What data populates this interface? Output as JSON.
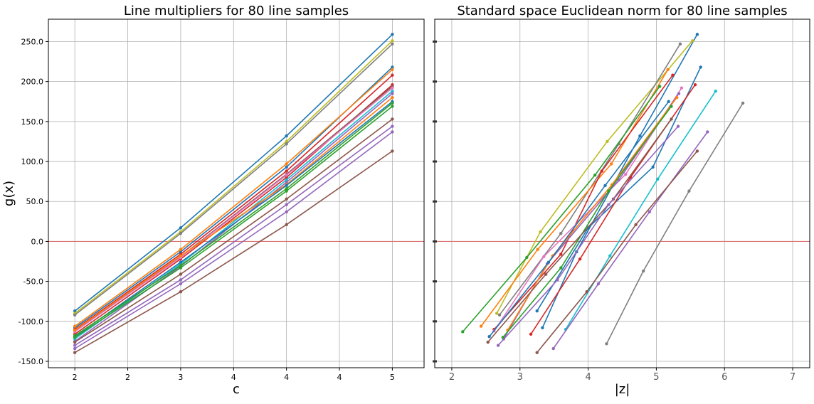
{
  "chart_data": [
    {
      "type": "line",
      "title": "Line multipliers for 80 line samples",
      "xlabel": "c",
      "ylabel": "g(x)",
      "xlim": [
        1.75,
        5.3
      ],
      "ylim": [
        -158,
        278
      ],
      "xticks": [
        2,
        2.5,
        3,
        3.5,
        4,
        4.5,
        5
      ],
      "xticklabels": [
        "2",
        "2",
        "3",
        "4",
        "4",
        "4",
        "5"
      ],
      "yticks": [
        -150,
        -100,
        -50,
        0,
        50,
        100,
        150,
        200,
        250
      ],
      "yticklabels": [
        "-150.0",
        "-100.0",
        "-50.0",
        "0.0",
        "50.0",
        "100.0",
        "150.0",
        "200.0",
        "250.0"
      ],
      "grid": true,
      "reference_line": {
        "y": 0,
        "color": "#e06666"
      },
      "x": [
        2,
        3,
        4,
        5
      ],
      "series": [
        {
          "color": "#1f77b4",
          "values": [
            -87,
            17,
            132,
            259
          ]
        },
        {
          "color": "#bcbd22",
          "values": [
            -90,
            12,
            125,
            251
          ]
        },
        {
          "color": "#7f7f7f",
          "values": [
            -92,
            10,
            122,
            247
          ]
        },
        {
          "color": "#1f77b4",
          "values": [
            -108,
            -13,
            93,
            218
          ]
        },
        {
          "color": "#ff7f0e",
          "values": [
            -106,
            -10,
            97,
            215
          ]
        },
        {
          "color": "#d62728",
          "values": [
            -110,
            -16,
            88,
            208
          ]
        },
        {
          "color": "#d62728",
          "values": [
            -116,
            -22,
            80,
            196
          ]
        },
        {
          "color": "#8c564b",
          "values": [
            -112,
            -19,
            84,
            194
          ]
        },
        {
          "color": "#e377c2",
          "values": [
            -113,
            -20,
            83,
            192
          ]
        },
        {
          "color": "#17becf",
          "values": [
            -122,
            -28,
            77,
            188
          ]
        },
        {
          "color": "#9467bd",
          "values": [
            -125,
            -31,
            74,
            185
          ]
        },
        {
          "color": "#ff7f0e",
          "values": [
            -111,
            -18,
            71,
            180
          ]
        },
        {
          "color": "#1f77b4",
          "values": [
            -119,
            -26,
            70,
            175
          ]
        },
        {
          "color": "#2ca02c",
          "values": [
            -120,
            -33,
            63,
            169
          ]
        },
        {
          "color": "#2ca02c",
          "values": [
            -118,
            -30,
            66,
            173
          ]
        },
        {
          "color": "#8c564b",
          "values": [
            -126,
            -41,
            53,
            153
          ]
        },
        {
          "color": "#9467bd",
          "values": [
            -130,
            -48,
            46,
            144
          ]
        },
        {
          "color": "#9467bd",
          "values": [
            -134,
            -53,
            37,
            137
          ]
        },
        {
          "color": "#8c564b",
          "values": [
            -139,
            -63,
            21,
            113
          ]
        }
      ]
    },
    {
      "type": "line",
      "title": "Standard space Euclidean norm for 80 line samples",
      "xlabel": "|z|",
      "ylabel": "",
      "xlim": [
        1.75,
        7.25
      ],
      "ylim": [
        -158,
        278
      ],
      "xticks": [
        2,
        3,
        4,
        5,
        6,
        7
      ],
      "xticklabels": [
        "2",
        "3",
        "4",
        "5",
        "6",
        "7"
      ],
      "yticks": [
        -150,
        -100,
        -50,
        0,
        50,
        100,
        150,
        200,
        250
      ],
      "grid": true,
      "reference_line": {
        "y": 0,
        "color": "#e06666"
      },
      "series": [
        {
          "color": "#1f77b4",
          "x": [
            3.33,
            3.83,
            4.76,
            5.6
          ],
          "values": [
            -108,
            -13,
            132,
            259
          ]
        },
        {
          "color": "#bcbd22",
          "x": [
            2.66,
            3.3,
            4.28,
            5.53
          ],
          "values": [
            -90,
            12,
            125,
            251
          ]
        },
        {
          "color": "#7f7f7f",
          "x": [
            2.7,
            3.6,
            4.45,
            5.35
          ],
          "values": [
            -92,
            10,
            122,
            247
          ]
        },
        {
          "color": "#1f77b4",
          "x": [
            3.25,
            4.0,
            4.95,
            5.65
          ],
          "values": [
            -87,
            17,
            93,
            218
          ]
        },
        {
          "color": "#ff7f0e",
          "x": [
            2.43,
            3.26,
            4.34,
            5.17
          ],
          "values": [
            -106,
            -10,
            97,
            215
          ]
        },
        {
          "color": "#d62728",
          "x": [
            2.62,
            3.6,
            4.2,
            5.24
          ],
          "values": [
            -110,
            -16,
            88,
            208
          ]
        },
        {
          "color": "#d62728",
          "x": [
            3.16,
            3.88,
            4.62,
            5.57
          ],
          "values": [
            -116,
            -22,
            80,
            196
          ]
        },
        {
          "color": "#2ca02c",
          "x": [
            2.16,
            3.1,
            4.1,
            5.05
          ],
          "values": [
            -113,
            -20,
            83,
            194
          ]
        },
        {
          "color": "#e377c2",
          "x": [
            2.62,
            3.35,
            4.55,
            5.37
          ],
          "values": [
            -112,
            -19,
            84,
            192
          ]
        },
        {
          "color": "#17becf",
          "x": [
            3.67,
            4.32,
            5.02,
            5.87
          ],
          "values": [
            -110,
            -18,
            78,
            188
          ]
        },
        {
          "color": "#9467bd",
          "x": [
            2.76,
            3.4,
            4.45,
            5.33
          ],
          "values": [
            -122,
            -28,
            77,
            185
          ]
        },
        {
          "color": "#ff7f0e",
          "x": [
            2.82,
            3.48,
            4.35,
            5.3
          ],
          "values": [
            -111,
            -18,
            71,
            180
          ]
        },
        {
          "color": "#1f77b4",
          "x": [
            2.55,
            3.42,
            4.25,
            5.18
          ],
          "values": [
            -119,
            -26,
            70,
            175
          ]
        },
        {
          "color": "#2ca02c",
          "x": [
            2.75,
            3.6,
            4.3,
            5.22
          ],
          "values": [
            -120,
            -33,
            63,
            169
          ]
        },
        {
          "color": "#8c564b",
          "x": [
            2.53,
            3.38,
            4.37,
            5.22
          ],
          "values": [
            -126,
            -41,
            53,
            153
          ]
        },
        {
          "color": "#9467bd",
          "x": [
            2.68,
            3.55,
            4.3,
            5.32
          ],
          "values": [
            -130,
            -48,
            46,
            144
          ]
        },
        {
          "color": "#9467bd",
          "x": [
            3.49,
            4.15,
            4.9,
            5.75
          ],
          "values": [
            -134,
            -53,
            37,
            137
          ]
        },
        {
          "color": "#8c564b",
          "x": [
            3.25,
            3.98,
            4.7,
            5.6
          ],
          "values": [
            -139,
            -63,
            21,
            113
          ]
        },
        {
          "color": "#7f7f7f",
          "x": [
            4.27,
            4.81,
            5.48,
            6.27
          ],
          "values": [
            -128,
            -37,
            63,
            173
          ]
        }
      ]
    }
  ]
}
